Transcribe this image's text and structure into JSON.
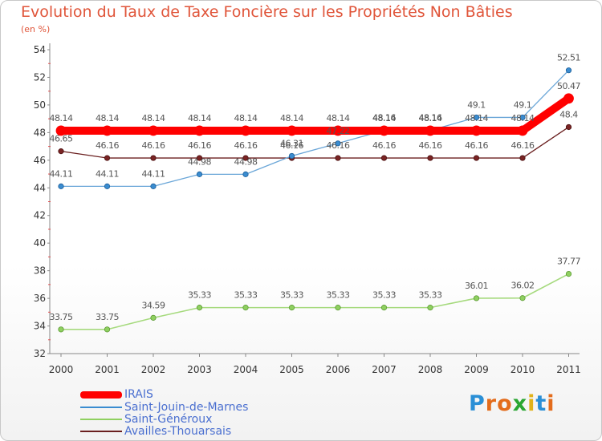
{
  "title": "Evolution du Taux de Taxe Foncière sur les Propriétés Non Bâties",
  "subtitle": "(en %)",
  "logo": {
    "text": "Proxiti",
    "letters": [
      "P",
      "r",
      "o",
      "x",
      "i",
      "t",
      "i"
    ],
    "colors": [
      "#2a8fd6",
      "#e36c1c",
      "#e36c1c",
      "#2aa632",
      "#e0b21a",
      "#2a8fd6",
      "#e36c1c"
    ]
  },
  "chart_data": {
    "type": "line",
    "title": "Evolution du Taux de Taxe Foncière sur les Propriétés Non Bâties",
    "ylabel": "(en %)",
    "xlabel": "",
    "ylim": [
      32,
      54
    ],
    "yticks": [
      32,
      34,
      36,
      38,
      40,
      42,
      44,
      46,
      48,
      50,
      52,
      54
    ],
    "categories": [
      "2000",
      "2001",
      "2002",
      "2003",
      "2004",
      "2005",
      "2006",
      "2007",
      "2008",
      "2009",
      "2010",
      "2011"
    ],
    "grid": false,
    "legend_position": "bottom-left",
    "series": [
      {
        "name": "IRAIS",
        "color": "#ff0000",
        "values": [
          48.14,
          48.14,
          48.14,
          48.14,
          48.14,
          48.14,
          48.14,
          48.14,
          48.14,
          48.14,
          48.14,
          50.47
        ],
        "labels": [
          "48.14",
          "48.14",
          "48.14",
          "48.14",
          "48.14",
          "48.14",
          "48.14",
          "48.14",
          "48.14",
          "48.14",
          "48.14",
          "50.47"
        ]
      },
      {
        "name": "Saint-Jouin-de-Marnes",
        "color": "#3a8cd0",
        "values": [
          44.11,
          44.11,
          44.11,
          44.98,
          44.98,
          46.31,
          47.22,
          48.16,
          48.16,
          49.1,
          49.1,
          52.51
        ],
        "labels": [
          "44.11",
          "44.11",
          "44.11",
          "44.98",
          "44.98",
          "46.31",
          "47.22",
          "48.16",
          "48.16",
          "49.1",
          "49.1",
          "52.51"
        ]
      },
      {
        "name": "Saint-Généroux",
        "color": "#8fd060",
        "values": [
          33.75,
          33.75,
          34.59,
          35.33,
          35.33,
          35.33,
          35.33,
          35.33,
          35.33,
          36.01,
          36.02,
          37.77
        ],
        "labels": [
          "33.75",
          "33.75",
          "34.59",
          "35.33",
          "35.33",
          "35.33",
          "35.33",
          "35.33",
          "35.33",
          "36.01",
          "36.02",
          "37.77"
        ]
      },
      {
        "name": "Availles-Thouarsais",
        "color": "#6a1f1f",
        "values": [
          46.65,
          46.16,
          46.16,
          46.16,
          46.16,
          46.16,
          46.16,
          46.16,
          46.16,
          46.16,
          46.16,
          48.4
        ],
        "labels": [
          "46.65",
          "46.16",
          "46.16",
          "46.16",
          "46.16",
          "46.16",
          "46.16",
          "46.16",
          "46.16",
          "46.16",
          "46.16",
          "48.4"
        ]
      }
    ]
  }
}
